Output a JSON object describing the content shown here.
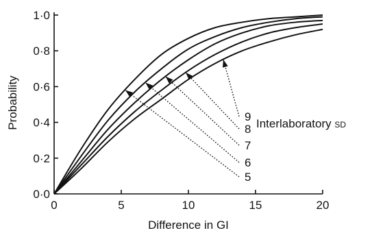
{
  "chart_data": {
    "type": "line",
    "xlabel": "Difference in GI",
    "ylabel": "Probability",
    "xlim": [
      0,
      20
    ],
    "ylim": [
      0,
      1.0
    ],
    "x_ticks": [
      0,
      5,
      10,
      15,
      20
    ],
    "y_ticks": [
      0.0,
      0.2,
      0.4,
      0.6,
      0.8,
      1.0
    ],
    "x_tick_labels": [
      "0",
      "5",
      "10",
      "15",
      "20"
    ],
    "y_tick_labels": [
      "0·0",
      "0·2",
      "0·4",
      "0·6",
      "0·8",
      "1·0"
    ],
    "grid": false,
    "legend_title": "Interlaboratory",
    "legend_title_suffix": "SD",
    "x": [
      0,
      2,
      4,
      6,
      8,
      10,
      12,
      14,
      16,
      18,
      20
    ],
    "series": [
      {
        "name": "5",
        "values": [
          0.0,
          0.25,
          0.47,
          0.64,
          0.78,
          0.87,
          0.93,
          0.96,
          0.98,
          0.99,
          1.0
        ]
      },
      {
        "name": "6",
        "values": [
          0.0,
          0.21,
          0.41,
          0.57,
          0.7,
          0.81,
          0.88,
          0.93,
          0.96,
          0.98,
          0.99
        ]
      },
      {
        "name": "7",
        "values": [
          0.0,
          0.18,
          0.36,
          0.51,
          0.64,
          0.75,
          0.84,
          0.9,
          0.94,
          0.96,
          0.97
        ]
      },
      {
        "name": "8",
        "values": [
          0.0,
          0.16,
          0.32,
          0.46,
          0.58,
          0.69,
          0.78,
          0.85,
          0.9,
          0.93,
          0.95
        ]
      },
      {
        "name": "9",
        "values": [
          0.0,
          0.14,
          0.29,
          0.42,
          0.53,
          0.64,
          0.73,
          0.8,
          0.85,
          0.89,
          0.92
        ]
      }
    ]
  }
}
